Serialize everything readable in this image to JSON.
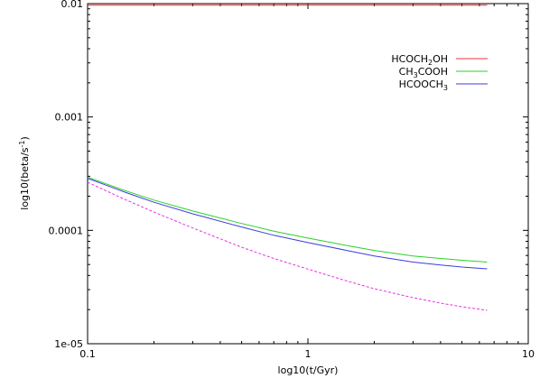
{
  "chart_data": {
    "type": "line",
    "title": "",
    "xlabel": "log10(t/Gyr)",
    "ylabel": "log10(beta/s",
    "ylabel_sup": "-1",
    "ylabel_close": ")",
    "x_scale": "log",
    "y_scale": "log",
    "xlim": [
      0.1,
      10
    ],
    "ylim": [
      1e-05,
      0.01
    ],
    "grid": false,
    "legend_position": "top-right",
    "x_ticks": [
      {
        "value": 0.1,
        "label": "0.1"
      },
      {
        "value": 1,
        "label": "1"
      },
      {
        "value": 10,
        "label": "10"
      }
    ],
    "y_ticks": [
      {
        "value": 1e-05,
        "label": "1e-05"
      },
      {
        "value": 0.0001,
        "label": "0.0001"
      },
      {
        "value": 0.001,
        "label": "0.001"
      },
      {
        "value": 0.01,
        "label": "0.01"
      }
    ],
    "series": [
      {
        "name": "HCOCH2OH",
        "legend_parts": [
          {
            "t": "HCOCH"
          },
          {
            "t": "2",
            "sub": true
          },
          {
            "t": "OH"
          }
        ],
        "color": "#e8323c",
        "dashed": false,
        "x": [
          0.1,
          0.2,
          0.5,
          1,
          2,
          4,
          6.5
        ],
        "y": [
          0.0097,
          0.0097,
          0.0097,
          0.0097,
          0.0097,
          0.0097,
          0.0097
        ]
      },
      {
        "name": "CH3COOH",
        "legend_parts": [
          {
            "t": "CH"
          },
          {
            "t": "3",
            "sub": true
          },
          {
            "t": "COOH"
          }
        ],
        "color": "#28d228",
        "dashed": false,
        "x": [
          0.1,
          0.15,
          0.2,
          0.3,
          0.5,
          0.7,
          1,
          1.5,
          2,
          3,
          4,
          5,
          6.5
        ],
        "y": [
          0.000295,
          0.000222,
          0.000185,
          0.000148,
          0.000115,
          9.85e-05,
          8.55e-05,
          7.35e-05,
          6.65e-05,
          5.95e-05,
          5.65e-05,
          5.45e-05,
          5.25e-05
        ]
      },
      {
        "name": "HCOOCH3",
        "legend_parts": [
          {
            "t": "HCOOCH"
          },
          {
            "t": "3",
            "sub": true
          }
        ],
        "color": "#3c3cdc",
        "dashed": false,
        "x": [
          0.1,
          0.15,
          0.2,
          0.3,
          0.5,
          0.7,
          1,
          1.5,
          2,
          3,
          4,
          5,
          6.5
        ],
        "y": [
          0.000288,
          0.000215,
          0.000177,
          0.00014,
          0.000107,
          9.05e-05,
          7.8e-05,
          6.65e-05,
          5.95e-05,
          5.25e-05,
          4.95e-05,
          4.75e-05,
          4.58e-05
        ]
      },
      {
        "name": "",
        "legend_parts": [],
        "color": "#e632e6",
        "dashed": true,
        "x": [
          0.1,
          0.15,
          0.2,
          0.3,
          0.5,
          0.7,
          1,
          1.5,
          2,
          3,
          4,
          5,
          6.5
        ],
        "y": [
          0.000265,
          0.000185,
          0.000145,
          0.000105,
          7.1e-05,
          5.65e-05,
          4.55e-05,
          3.58e-05,
          3.05e-05,
          2.55e-05,
          2.28e-05,
          2.12e-05,
          1.97e-05
        ]
      }
    ]
  }
}
